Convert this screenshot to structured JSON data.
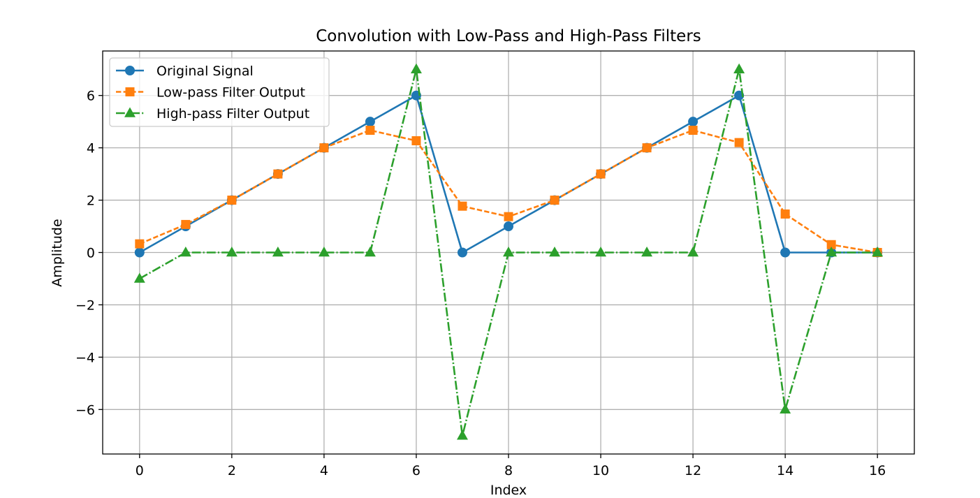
{
  "chart_data": {
    "type": "line",
    "title": "Convolution with Low-Pass and High-Pass Filters",
    "xlabel": "Index",
    "ylabel": "Amplitude",
    "xlim": [
      -0.8,
      16.8
    ],
    "ylim": [
      -7.7,
      7.7
    ],
    "xticks": [
      0,
      2,
      4,
      6,
      8,
      10,
      12,
      14,
      16
    ],
    "yticks": [
      -6,
      -4,
      -2,
      0,
      2,
      4,
      6
    ],
    "xtick_labels": [
      "0",
      "2",
      "4",
      "6",
      "8",
      "10",
      "12",
      "14",
      "16"
    ],
    "ytick_labels": [
      "−6",
      "−4",
      "−2",
      "0",
      "2",
      "4",
      "6"
    ],
    "grid": true,
    "legend_position": "top-left",
    "x": [
      0,
      1,
      2,
      3,
      4,
      5,
      6,
      7,
      8,
      9,
      10,
      11,
      12,
      13,
      14,
      15,
      16
    ],
    "series": [
      {
        "name": "Original Signal",
        "color": "#1f77b4",
        "line_style": "solid",
        "marker": "circle",
        "values": [
          0,
          1,
          2,
          3,
          4,
          5,
          6,
          0,
          1,
          2,
          3,
          4,
          5,
          6,
          0,
          0,
          0
        ]
      },
      {
        "name": "Low-pass Filter Output",
        "color": "#ff7f0e",
        "line_style": "dashed",
        "marker": "square",
        "values": [
          0.33,
          1.07,
          2.0,
          3.0,
          4.0,
          4.67,
          4.27,
          1.77,
          1.37,
          2.0,
          3.0,
          4.0,
          4.67,
          4.2,
          1.47,
          0.3,
          0.0
        ]
      },
      {
        "name": "High-pass Filter Output",
        "color": "#2ca02c",
        "line_style": "dashdot",
        "marker": "triangle",
        "values": [
          -1,
          0,
          0,
          0,
          0,
          0,
          7,
          -7,
          0,
          0,
          0,
          0,
          0,
          7,
          -6,
          0,
          0
        ]
      }
    ]
  }
}
